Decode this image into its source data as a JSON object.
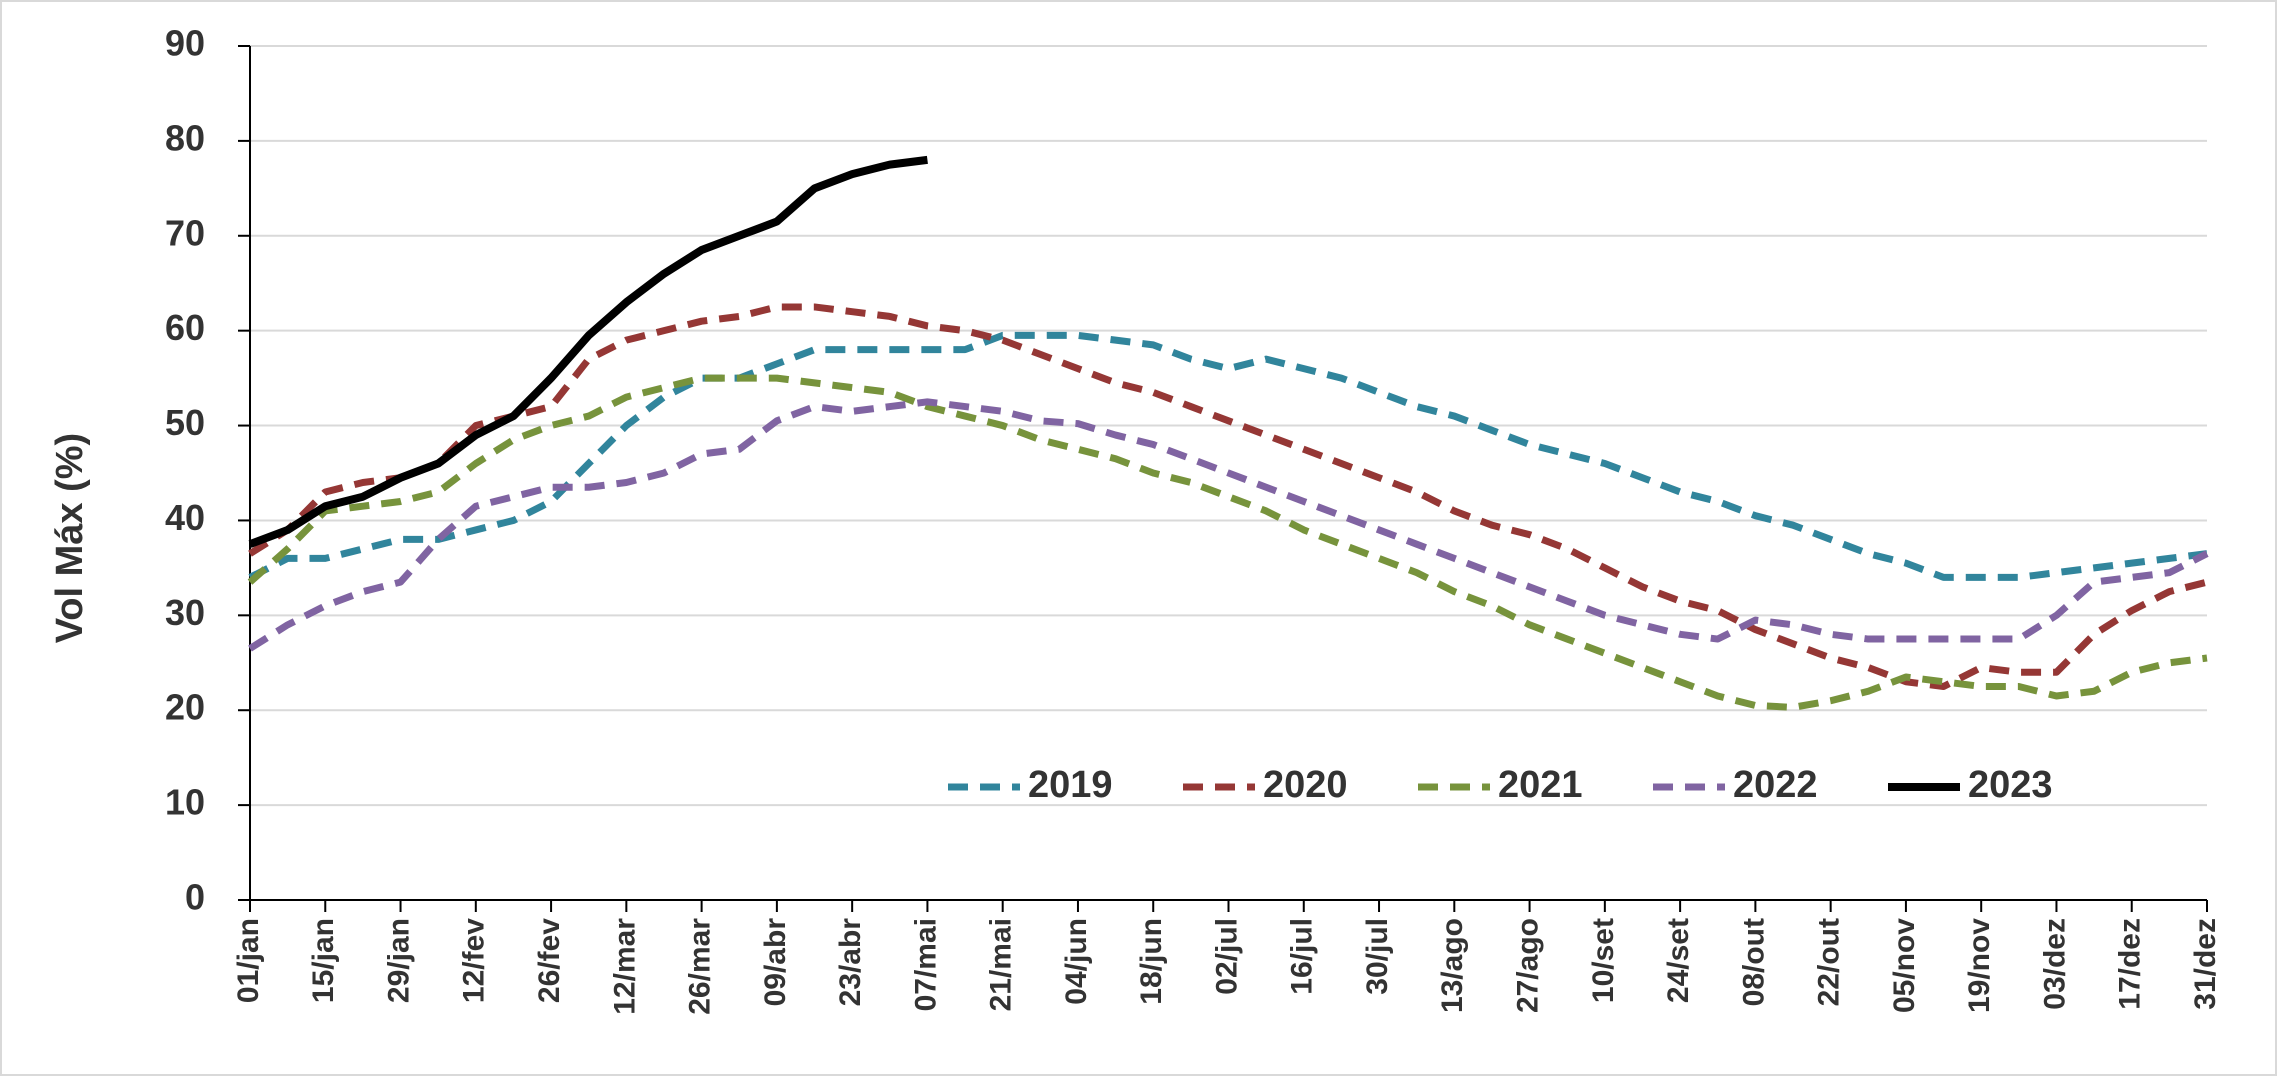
{
  "chart_data": {
    "type": "line",
    "y_label": "Vol Máx (%)",
    "categories": [
      "01/jan",
      null,
      "15/jan",
      null,
      "29/jan",
      null,
      "12/fev",
      null,
      "26/fev",
      null,
      "12/mar",
      null,
      "26/mar",
      null,
      "09/abr",
      null,
      "23/abr",
      null,
      "07/mai",
      null,
      "21/mai",
      null,
      "04/jun",
      null,
      "18/jun",
      null,
      "02/jul",
      null,
      "16/jul",
      null,
      "30/jul",
      null,
      "13/ago",
      null,
      "27/ago",
      null,
      "10/set",
      null,
      "24/set",
      null,
      "08/out",
      null,
      "22/out",
      null,
      "05/nov",
      null,
      "19/nov",
      null,
      "03/dez",
      null,
      "17/dez",
      null,
      "31/dez"
    ],
    "series": [
      {
        "name": "2019",
        "color": "#31859c",
        "dashed": true,
        "values": [
          34,
          36,
          36,
          37,
          38,
          38,
          39,
          40,
          42,
          46,
          50,
          53,
          55,
          55,
          56.5,
          58,
          58,
          58,
          58,
          58,
          59.5,
          59.5,
          59.5,
          59,
          58.5,
          57,
          56,
          57,
          56,
          55,
          53.5,
          52,
          51,
          49.5,
          48,
          47,
          46,
          44.5,
          43,
          42,
          40.5,
          39.5,
          38,
          36.5,
          35.5,
          34,
          34,
          34,
          34.5,
          35,
          35.5,
          36,
          36.5
        ]
      },
      {
        "name": "2020",
        "color": "#953735",
        "dashed": true,
        "values": [
          36.5,
          39,
          43,
          44,
          44.5,
          46,
          50,
          51,
          52,
          57,
          59,
          60,
          61,
          61.5,
          62.5,
          62.5,
          62,
          61.5,
          60.5,
          60,
          59,
          57.5,
          56,
          54.5,
          53.5,
          52,
          50.5,
          49,
          47.5,
          46,
          44.5,
          43,
          41,
          39.5,
          38.5,
          37,
          35,
          33,
          31.5,
          30.5,
          28.5,
          27,
          25.5,
          24.5,
          23,
          22.5,
          24.5,
          24,
          24,
          28,
          30.5,
          32.5,
          33.5
        ]
      },
      {
        "name": "2021",
        "color": "#77933c",
        "dashed": true,
        "values": [
          33.5,
          37,
          41,
          41.5,
          42,
          43,
          46,
          48.5,
          50,
          51,
          53,
          54,
          55,
          55,
          55,
          54.5,
          54,
          53.5,
          52,
          51,
          50,
          48.5,
          47.5,
          46.5,
          45,
          44,
          42.5,
          41,
          39,
          37.5,
          36,
          34.5,
          32.5,
          31,
          29,
          27.5,
          26,
          24.5,
          23,
          21.5,
          20.5,
          20.3,
          21,
          22,
          23.5,
          23,
          22.5,
          22.5,
          21.5,
          22,
          24,
          25,
          25.5
        ]
      },
      {
        "name": "2022",
        "color": "#8064a2",
        "dashed": true,
        "values": [
          26.5,
          29,
          31,
          32.5,
          33.5,
          38,
          41.5,
          42.5,
          43.5,
          43.5,
          44,
          45,
          47,
          47.5,
          50.5,
          52,
          51.5,
          52,
          52.5,
          52,
          51.5,
          50.5,
          50.2,
          49,
          48,
          46.5,
          45,
          43.5,
          42,
          40.5,
          39,
          37.5,
          36,
          34.5,
          33,
          31.5,
          30,
          29,
          28,
          27.5,
          29.5,
          29,
          28,
          27.5,
          27.5,
          27.5,
          27.5,
          27.5,
          30,
          33.5,
          34,
          34.5,
          36.5
        ]
      },
      {
        "name": "2023",
        "color": "#000000",
        "dashed": false,
        "values": [
          37.5,
          39,
          41.5,
          42.5,
          44.5,
          46,
          49,
          51,
          55,
          59.5,
          63,
          66,
          68.5,
          70,
          71.5,
          75,
          76.5,
          77.5,
          78,
          null,
          null,
          null,
          null,
          null,
          null,
          null,
          null,
          null,
          null,
          null,
          null,
          null,
          null,
          null,
          null,
          null,
          null,
          null,
          null,
          null,
          null,
          null,
          null,
          null,
          null,
          null,
          null,
          null,
          null,
          null,
          null,
          null,
          null
        ]
      }
    ],
    "ylim": [
      0,
      90
    ],
    "yticks": [
      0,
      10,
      20,
      30,
      40,
      50,
      60,
      70,
      80,
      90
    ],
    "grid": true
  }
}
